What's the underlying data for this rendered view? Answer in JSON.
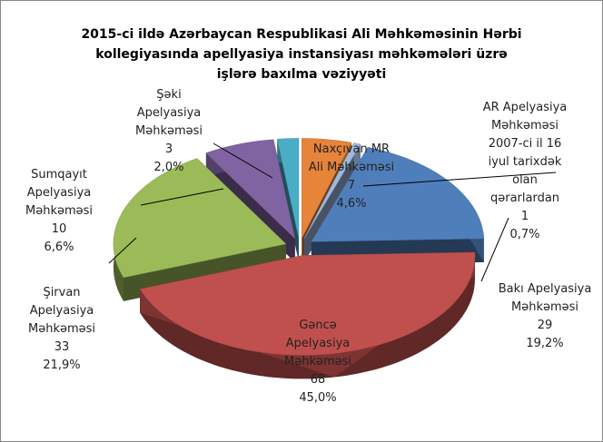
{
  "chart_data": {
    "type": "pie",
    "title": "2015-ci ildə Azərbaycan Respublikasi Ali Məhkəməsinin Hərbi\nkollegiyasında apellyasiya instansiyası məhkəmələri üzrə\nişlərə baxılma vəziyyəti",
    "categories": [
      "Naxçıvan MR\nAli  Məhkəməsi",
      "AR Apelyasiya\nMəhkəməsi\n2007-ci il 16\niyul tarixdək\nolan\nqərarlardan",
      "Bakı Apelyasiya\nMəhkəməsi",
      "Gəncə\nApelyasiya\nMəhkəməsi",
      "Şirvan\nApelyasiya\nMəhkəməsi",
      "Sumqayıt\nApelyasiya\nMəhkəməsi",
      "Şəki\nApelyasiya\nMəhkəməsi"
    ],
    "values": [
      7,
      1,
      29,
      68,
      33,
      10,
      3
    ],
    "percent_labels": [
      "4,6%",
      "0,7%",
      "19,2%",
      "45,0%",
      "21,9%",
      "6,6%",
      "2,0%"
    ],
    "colors": [
      "#e6843a",
      "#9db9e0",
      "#4f7fbb",
      "#c0504d",
      "#9bbb59",
      "#8064a2",
      "#4bacc6"
    ]
  }
}
